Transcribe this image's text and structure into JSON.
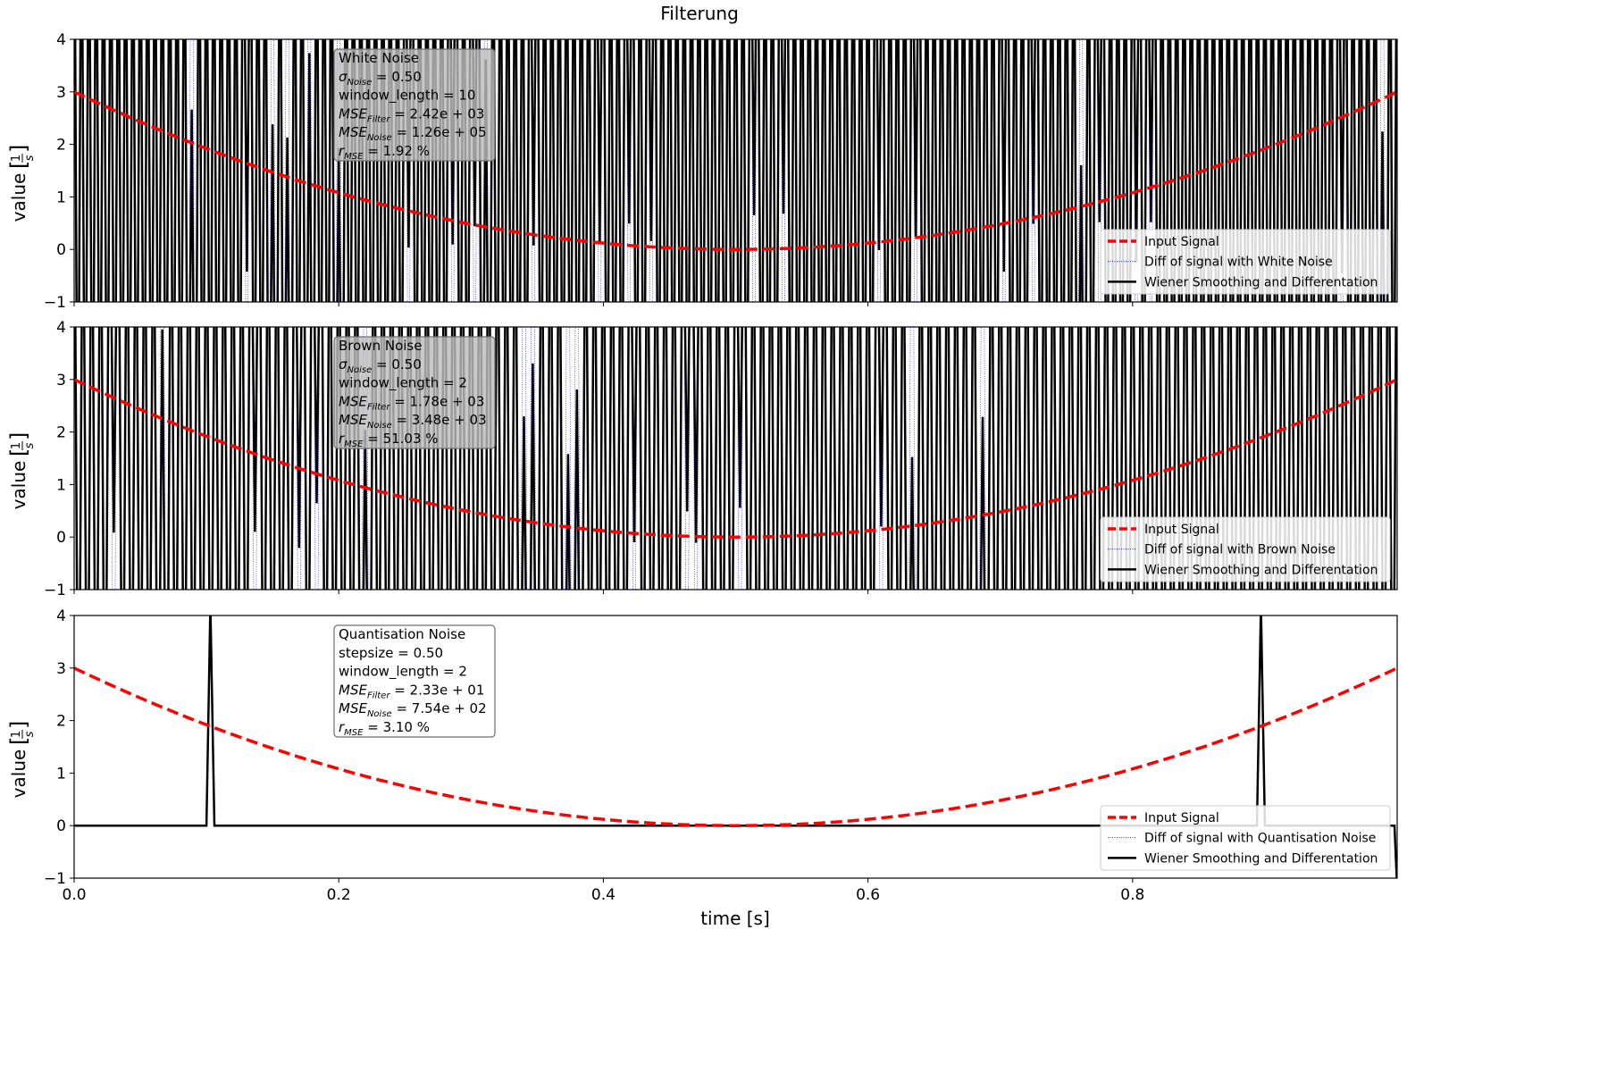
{
  "figure": {
    "title": "Filterung"
  },
  "shared": {
    "xlabel": "time [s]",
    "ylabel": "value [1/s]",
    "ylabel_prefix": "value",
    "ylabel_num": "1",
    "ylabel_den": "s"
  },
  "chart_data": [
    {
      "type": "line",
      "panel": "White Noise",
      "xlim": [
        0.0,
        1.0
      ],
      "ylim": [
        -1,
        4
      ],
      "x_ticks": [
        "0.0",
        "0.2",
        "0.4",
        "0.6",
        "0.8"
      ],
      "y_ticks": [
        "−1",
        "0",
        "1",
        "2",
        "3",
        "4"
      ],
      "info_lines": [
        "White Noise",
        "σNoise = 0.50",
        "window_length = 10",
        "MSEFilter = 2.42e + 03",
        "MSENoise = 1.26e + 05",
        "rMSE = 1.92 %"
      ],
      "legend": [
        "Input Signal",
        "Diff of signal with White Noise",
        "Wiener Smoothing and Differentation"
      ],
      "legend_position": "lower-right",
      "series": [
        {
          "name": "Input Signal",
          "function": "12*(x-0.5)^2",
          "x": [
            0.0,
            0.1,
            0.2,
            0.3,
            0.4,
            0.5,
            0.6,
            0.7,
            0.8,
            0.9,
            1.0
          ],
          "values": [
            3.0,
            1.92,
            1.08,
            0.48,
            0.12,
            0.0,
            0.12,
            0.48,
            1.08,
            1.92,
            3.0
          ],
          "color": "#ff0000",
          "style": "dashed"
        },
        {
          "name": "Diff of signal with White Noise",
          "color": "#0000ff",
          "style": "dotted",
          "description": "dense oscillation exceeding the y range"
        },
        {
          "name": "Wiener Smoothing and Differentation",
          "color": "#000000",
          "style": "solid",
          "description": "dense oscillation exceeding the y range"
        }
      ]
    },
    {
      "type": "line",
      "panel": "Brown Noise",
      "xlim": [
        0.0,
        1.0
      ],
      "ylim": [
        -1,
        4
      ],
      "x_ticks": [
        "0.0",
        "0.2",
        "0.4",
        "0.6",
        "0.8"
      ],
      "y_ticks": [
        "−1",
        "0",
        "1",
        "2",
        "3",
        "4"
      ],
      "info_lines": [
        "Brown Noise",
        "σNoise = 0.50",
        "window_length = 2",
        "MSEFilter = 1.78e + 03",
        "MSENoise = 3.48e + 03",
        "rMSE = 51.03 %"
      ],
      "legend": [
        "Input Signal",
        "Diff of signal with Brown Noise",
        "Wiener Smoothing and Differentation"
      ],
      "legend_position": "lower-right",
      "series": [
        {
          "name": "Input Signal",
          "function": "12*(x-0.5)^2",
          "x": [
            0.0,
            0.1,
            0.2,
            0.3,
            0.4,
            0.5,
            0.6,
            0.7,
            0.8,
            0.9,
            1.0
          ],
          "values": [
            3.0,
            1.92,
            1.08,
            0.48,
            0.12,
            0.0,
            0.12,
            0.48,
            1.08,
            1.92,
            3.0
          ],
          "color": "#ff0000",
          "style": "dashed"
        },
        {
          "name": "Diff of signal with Brown Noise",
          "color": "#0000ff",
          "style": "dotted",
          "description": "dense oscillation exceeding the y range"
        },
        {
          "name": "Wiener Smoothing and Differentation",
          "color": "#000000",
          "style": "solid",
          "description": "dense oscillation exceeding the y range"
        }
      ]
    },
    {
      "type": "line",
      "panel": "Quantisation Noise",
      "xlim": [
        0.0,
        1.0
      ],
      "ylim": [
        -1,
        4
      ],
      "x_ticks": [
        "0.0",
        "0.2",
        "0.4",
        "0.6",
        "0.8"
      ],
      "y_ticks": [
        "−1",
        "0",
        "1",
        "2",
        "3",
        "4"
      ],
      "info_lines": [
        "Quantisation Noise",
        "stepsize = 0.50",
        "window_length = 2",
        "MSEFilter = 2.33e + 01",
        "MSENoise = 7.54e + 02",
        "rMSE = 3.10 %"
      ],
      "legend": [
        "Input Signal",
        "Diff of signal with Quantisation Noise",
        "Wiener Smoothing and Differentation"
      ],
      "legend_position": "lower-right",
      "series": [
        {
          "name": "Input Signal",
          "function": "12*(x-0.5)^2",
          "x": [
            0.0,
            0.1,
            0.2,
            0.3,
            0.4,
            0.5,
            0.6,
            0.7,
            0.8,
            0.9,
            1.0
          ],
          "values": [
            3.0,
            1.92,
            1.08,
            0.48,
            0.12,
            0.0,
            0.12,
            0.48,
            1.08,
            1.92,
            3.0
          ],
          "color": "#ff0000",
          "style": "dashed"
        },
        {
          "name": "Diff of signal with Quantisation Noise",
          "color": "#0000ff",
          "style": "dotted"
        },
        {
          "name": "Wiener Smoothing and Differentation",
          "color": "#000000",
          "style": "solid",
          "x": [
            0.0,
            0.1,
            0.103,
            0.106,
            0.894,
            0.897,
            0.9,
            0.998,
            1.0
          ],
          "values": [
            0,
            0,
            4.2,
            0,
            0,
            4.2,
            0,
            0,
            -1.2
          ]
        }
      ]
    }
  ]
}
